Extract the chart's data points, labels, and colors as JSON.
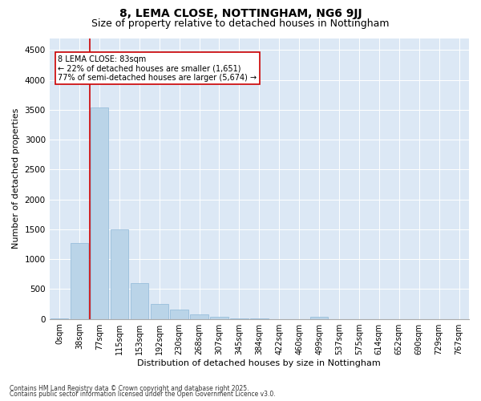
{
  "title": "8, LEMA CLOSE, NOTTINGHAM, NG6 9JJ",
  "subtitle": "Size of property relative to detached houses in Nottingham",
  "xlabel": "Distribution of detached houses by size in Nottingham",
  "ylabel": "Number of detached properties",
  "bar_labels": [
    "0sqm",
    "38sqm",
    "77sqm",
    "115sqm",
    "153sqm",
    "192sqm",
    "230sqm",
    "268sqm",
    "307sqm",
    "345sqm",
    "384sqm",
    "422sqm",
    "460sqm",
    "499sqm",
    "537sqm",
    "575sqm",
    "614sqm",
    "652sqm",
    "690sqm",
    "729sqm",
    "767sqm"
  ],
  "bar_values": [
    10,
    1270,
    3540,
    1500,
    600,
    250,
    160,
    80,
    40,
    10,
    5,
    0,
    0,
    35,
    0,
    0,
    0,
    0,
    0,
    0,
    0
  ],
  "bar_color": "#bad4e8",
  "bar_edge_color": "#8fb8d8",
  "vline_x": 1.5,
  "vline_color": "#cc0000",
  "annotation_title": "8 LEMA CLOSE: 83sqm",
  "annotation_line1": "← 22% of detached houses are smaller (1,651)",
  "annotation_line2": "77% of semi-detached houses are larger (5,674) →",
  "annotation_box_color": "#ffffff",
  "annotation_border_color": "#cc0000",
  "ylim": [
    0,
    4700
  ],
  "yticks": [
    0,
    500,
    1000,
    1500,
    2000,
    2500,
    3000,
    3500,
    4000,
    4500
  ],
  "background_color": "#dce8f5",
  "grid_color": "#ffffff",
  "footer_line1": "Contains HM Land Registry data © Crown copyright and database right 2025.",
  "footer_line2": "Contains public sector information licensed under the Open Government Licence v3.0.",
  "title_fontsize": 10,
  "subtitle_fontsize": 9,
  "axis_label_fontsize": 8,
  "tick_fontsize": 7,
  "footer_fontsize": 5.5
}
